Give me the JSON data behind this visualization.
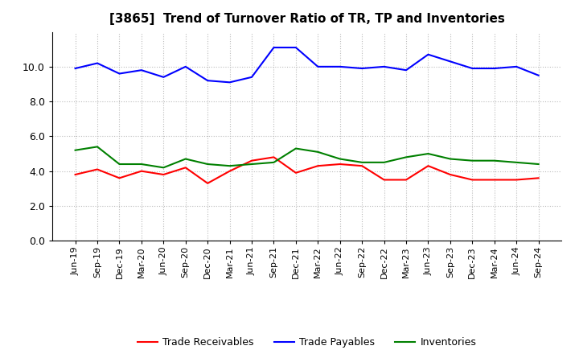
{
  "title": "[3865]  Trend of Turnover Ratio of TR, TP and Inventories",
  "x_labels": [
    "Jun-19",
    "Sep-19",
    "Dec-19",
    "Mar-20",
    "Jun-20",
    "Sep-20",
    "Dec-20",
    "Mar-21",
    "Jun-21",
    "Sep-21",
    "Dec-21",
    "Mar-22",
    "Jun-22",
    "Sep-22",
    "Dec-22",
    "Mar-23",
    "Jun-23",
    "Sep-23",
    "Dec-23",
    "Mar-24",
    "Jun-24",
    "Sep-24"
  ],
  "trade_receivables": [
    3.8,
    4.1,
    3.6,
    4.0,
    3.8,
    4.2,
    3.3,
    4.0,
    4.6,
    4.8,
    3.9,
    4.3,
    4.4,
    4.3,
    3.5,
    3.5,
    4.3,
    3.8,
    3.5,
    3.5,
    3.5,
    3.6
  ],
  "trade_payables": [
    9.9,
    10.2,
    9.6,
    9.8,
    9.4,
    10.0,
    9.2,
    9.1,
    9.4,
    11.1,
    11.1,
    10.0,
    10.0,
    9.9,
    10.0,
    9.8,
    10.7,
    10.3,
    9.9,
    9.9,
    10.0,
    9.5
  ],
  "inventories": [
    5.2,
    5.4,
    4.4,
    4.4,
    4.2,
    4.7,
    4.4,
    4.3,
    4.4,
    4.5,
    5.3,
    5.1,
    4.7,
    4.5,
    4.5,
    4.8,
    5.0,
    4.7,
    4.6,
    4.6,
    4.5,
    4.4
  ],
  "color_tr": "#ff0000",
  "color_tp": "#0000ff",
  "color_inv": "#008000",
  "ylim": [
    0.0,
    12.0
  ],
  "yticks": [
    0.0,
    2.0,
    4.0,
    6.0,
    8.0,
    10.0
  ],
  "legend_labels": [
    "Trade Receivables",
    "Trade Payables",
    "Inventories"
  ],
  "background_color": "#ffffff",
  "grid_color": "#aaaaaa",
  "title_fontsize": 11,
  "tick_fontsize": 8,
  "legend_fontsize": 9
}
